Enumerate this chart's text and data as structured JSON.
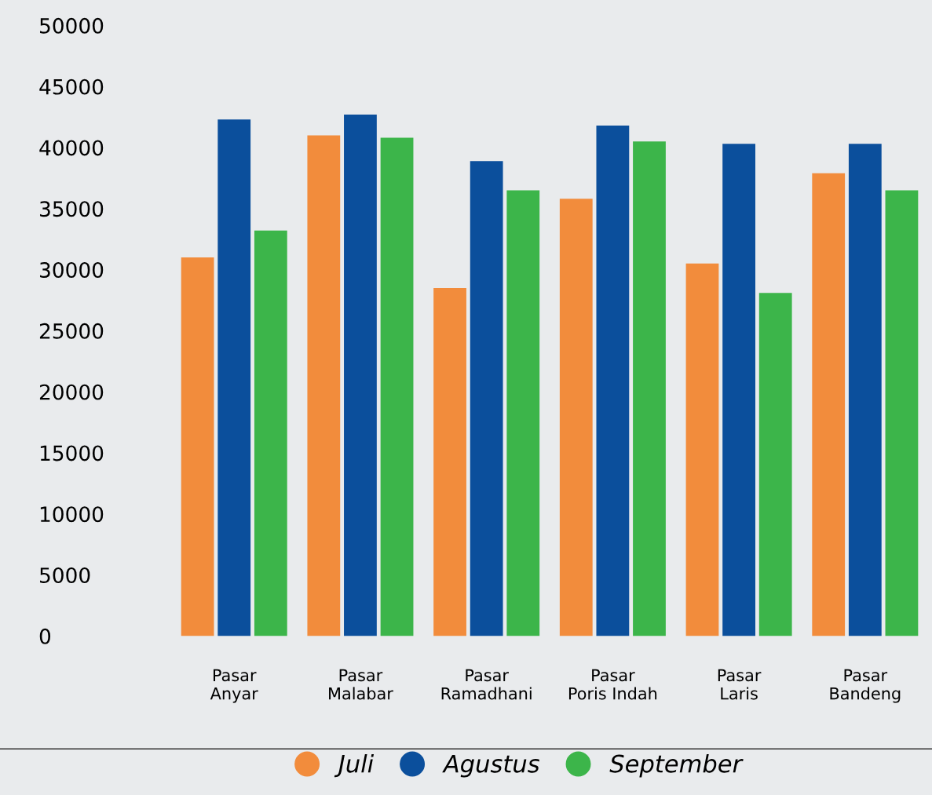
{
  "chart_data": {
    "type": "bar",
    "categories": [
      "Pasar Anyar",
      "Pasar Malabar",
      "Pasar Ramadhani",
      "Pasar Poris Indah",
      "Pasar Laris",
      "Pasar Bandeng"
    ],
    "series": [
      {
        "name": "Juli",
        "color": "#f28c3c",
        "values": [
          31000,
          41000,
          28500,
          35800,
          30500,
          37900
        ]
      },
      {
        "name": "Agustus",
        "color": "#0b4f9c",
        "values": [
          42300,
          42700,
          38900,
          41800,
          40300,
          40300
        ]
      },
      {
        "name": "September",
        "color": "#3cb54a",
        "values": [
          33200,
          40800,
          36500,
          40500,
          28100,
          36500
        ]
      }
    ],
    "ylim": [
      0,
      50000
    ],
    "yticks": [
      0,
      5000,
      10000,
      15000,
      20000,
      25000,
      30000,
      35000,
      40000,
      45000,
      50000
    ],
    "grid": false,
    "legend": "bottom"
  }
}
